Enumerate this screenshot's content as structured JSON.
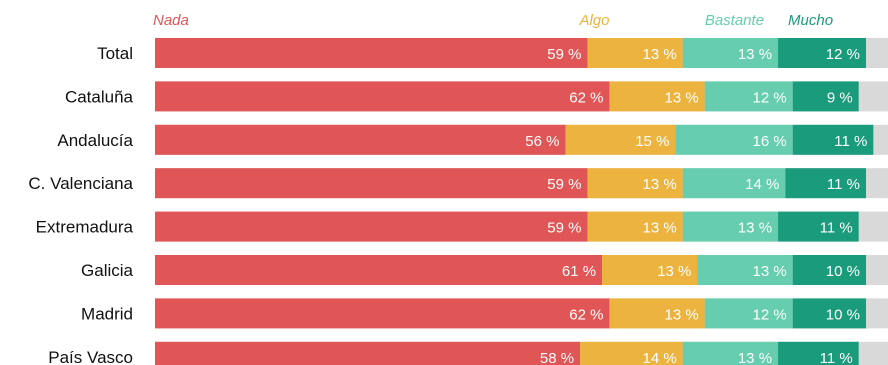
{
  "chart_data": {
    "type": "bar",
    "orientation": "horizontal",
    "stacked": true,
    "categories": [
      "Total",
      "Cataluña",
      "Andalucía",
      "C. Valenciana",
      "Extremadura",
      "Galicia",
      "Madrid",
      "País Vasco"
    ],
    "series": [
      {
        "name": "Nada",
        "color": "#e05555",
        "values": [
          59,
          62,
          56,
          59,
          59,
          61,
          62,
          58
        ],
        "labels": [
          "59 %",
          "62 %",
          "56 %",
          "59 %",
          "59 %",
          "61 %",
          "62 %",
          "58 %"
        ]
      },
      {
        "name": "Algo",
        "color": "#edb33f",
        "values": [
          13,
          13,
          15,
          13,
          13,
          13,
          13,
          14
        ],
        "labels": [
          "13 %",
          "13 %",
          "15 %",
          "13 %",
          "13 %",
          "13 %",
          "13 %",
          "14 %"
        ]
      },
      {
        "name": "Bastante",
        "color": "#66ceae",
        "values": [
          13,
          12,
          16,
          14,
          13,
          13,
          12,
          13
        ],
        "labels": [
          "13 %",
          "12 %",
          "16 %",
          "14 %",
          "13 %",
          "13 %",
          "12 %",
          "13 %"
        ]
      },
      {
        "name": "Mucho",
        "color": "#1a9b7c",
        "values": [
          12,
          9,
          11,
          11,
          11,
          10,
          10,
          11
        ],
        "labels": [
          "12 %",
          "9 %",
          "11 %",
          "11 %",
          "11 %",
          "10 %",
          "10 %",
          "11 %"
        ]
      }
    ],
    "remainder_color": "#d9d9d9",
    "xlim": [
      0,
      100
    ],
    "legend": "top",
    "grid": false
  }
}
